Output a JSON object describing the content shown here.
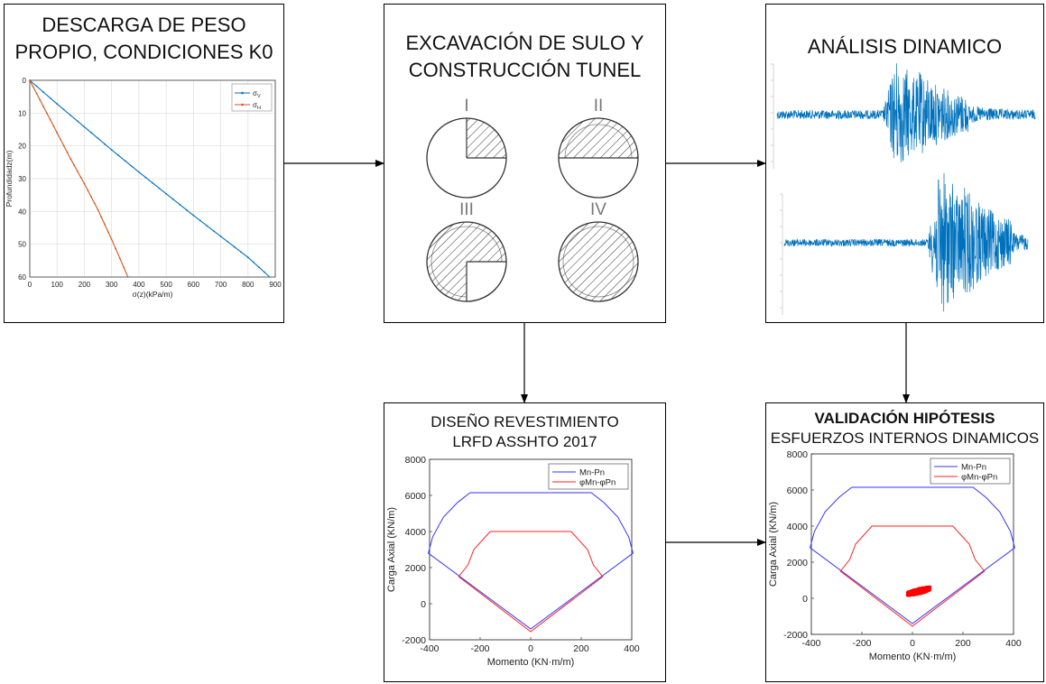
{
  "boxes": {
    "b1": {
      "title_lines": [
        "DESCARGA DE PESO",
        "PROPIO, CONDICIONES K0"
      ]
    },
    "b2": {
      "title_lines": [
        "EXCAVACIÓN DE SULO Y",
        "CONSTRUCCIÓN TUNEL"
      ],
      "stages": [
        "I",
        "II",
        "III",
        "IV"
      ]
    },
    "b3": {
      "title": "ANÁLISIS DINAMICO"
    },
    "b4": {
      "title_lines": [
        "DISEÑO REVESTIMIENTO",
        "LRFD ASSHTO 2017"
      ]
    },
    "b5": {
      "title_bold": "VALIDACIÓN HIPÓTESIS",
      "title_line2": "ESFUERZOS INTERNOS DINAMICOS"
    }
  },
  "chart_data": [
    {
      "id": "stress-profile",
      "type": "line",
      "xlabel": "σ(z)(kPa/m)",
      "ylabel": "Profundidadz(m)",
      "xlim": [
        0,
        900
      ],
      "ylim": [
        0,
        60
      ],
      "y_inverted": true,
      "xticks": [
        "0",
        "100",
        "200",
        "300",
        "400",
        "500",
        "600",
        "700",
        "800",
        "900"
      ],
      "yticks": [
        "0",
        "10",
        "20",
        "30",
        "40",
        "50",
        "60"
      ],
      "grid": true,
      "legend_position": "top-right",
      "series": [
        {
          "name": "σV",
          "color": "#0072BD",
          "x": [
            0,
            100,
            200,
            300,
            400,
            500,
            600,
            700,
            800,
            880
          ],
          "y": [
            0,
            7.2,
            14.2,
            21.2,
            28.0,
            34.6,
            41.2,
            47.6,
            54.0,
            60
          ]
        },
        {
          "name": "σH",
          "color": "#D95319",
          "x": [
            0,
            50,
            100,
            150,
            200,
            250,
            300,
            360
          ],
          "y": [
            0,
            8.0,
            16.0,
            24.0,
            31.5,
            39.5,
            48.5,
            60
          ]
        }
      ]
    },
    {
      "id": "seismic-records",
      "type": "line",
      "series": [
        {
          "name": "",
          "color": "#0072BD",
          "peak_fraction": 0.46
        },
        {
          "name": "",
          "color": "#0072BD",
          "peak_fraction": 0.64
        }
      ]
    },
    {
      "id": "interaction-design",
      "type": "line",
      "xlabel": "Momento (KN·m/m)",
      "ylabel": "Carga Axial (KN/m)",
      "xlim": [
        -400,
        400
      ],
      "ylim": [
        -2000,
        8000
      ],
      "xticks": [
        "-400",
        "-200",
        "0",
        "200",
        "400"
      ],
      "yticks": [
        "-2000",
        "0",
        "2000",
        "4000",
        "6000",
        "8000"
      ],
      "legend_position": "top-right",
      "series": [
        {
          "name": "Mn-Pn",
          "color": "#3333FF",
          "x": [
            -240,
            240,
            290,
            345,
            388,
            405,
            0,
            -405,
            -388,
            -345,
            -290,
            -240
          ],
          "y": [
            6150,
            6150,
            5600,
            4800,
            3700,
            2800,
            -1400,
            2800,
            3700,
            4800,
            5600,
            6150
          ]
        },
        {
          "name": "φMn-φPn",
          "color": "#FF2020",
          "x": [
            -160,
            160,
            225,
            248,
            265,
            285,
            0,
            -285,
            -265,
            -248,
            -225,
            -160
          ],
          "y": [
            4000,
            4000,
            3000,
            2150,
            1850,
            1500,
            -1550,
            1500,
            1850,
            2150,
            3000,
            4000
          ]
        }
      ]
    },
    {
      "id": "interaction-validation",
      "type": "line",
      "xlabel": "Momento (KN·m/m)",
      "ylabel": "Carga Axial (KN/m)",
      "xlim": [
        -400,
        400
      ],
      "ylim": [
        -2000,
        8000
      ],
      "xticks": [
        "-400",
        "-200",
        "0",
        "200",
        "400"
      ],
      "yticks": [
        "-2000",
        "0",
        "2000",
        "4000",
        "6000",
        "8000"
      ],
      "legend_position": "top-right",
      "series": [
        {
          "name": "Mn-Pn",
          "color": "#3333FF",
          "x": [
            -240,
            240,
            290,
            345,
            388,
            405,
            0,
            -405,
            -388,
            -345,
            -290,
            -240
          ],
          "y": [
            6150,
            6150,
            5600,
            4800,
            3700,
            2800,
            -1400,
            2800,
            3700,
            4800,
            5600,
            6150
          ]
        },
        {
          "name": "φMn-φPn",
          "color": "#FF2020",
          "x": [
            -160,
            160,
            225,
            248,
            265,
            285,
            0,
            -285,
            -265,
            -248,
            -225,
            -160
          ],
          "y": [
            4000,
            4000,
            3000,
            2150,
            1850,
            1500,
            -1550,
            1500,
            1850,
            2150,
            3000,
            4000
          ]
        },
        {
          "name": "",
          "color": "#FF0000",
          "type": "scatter-cloud",
          "x_range": [
            -20,
            70
          ],
          "y_range": [
            100,
            650
          ]
        }
      ]
    }
  ]
}
